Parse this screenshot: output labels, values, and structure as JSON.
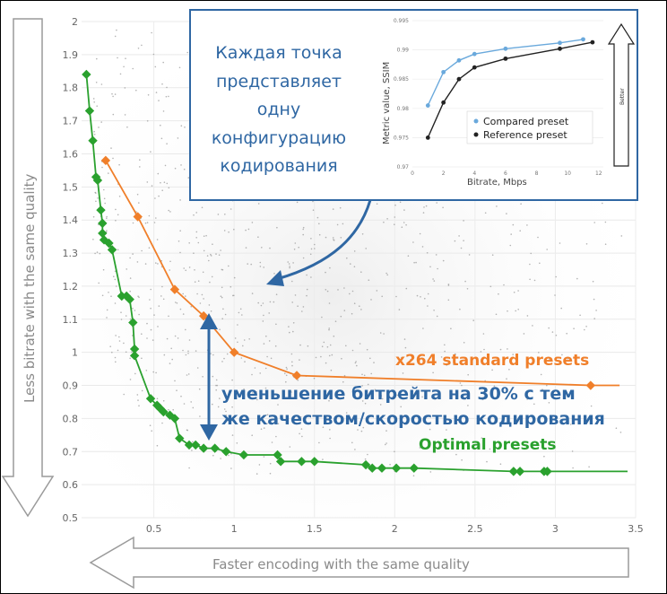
{
  "chart_data": {
    "type": "scatter",
    "x_axis": {
      "label": "Faster encoding with the same quality",
      "ticks": [
        "0.5",
        "1",
        "1.5",
        "2",
        "2.5",
        "3",
        "3.5"
      ],
      "tick_values": [
        0.5,
        1,
        1.5,
        2,
        2.5,
        3,
        3.5
      ],
      "range": [
        0.05,
        3.5
      ]
    },
    "y_axis": {
      "label": "Less bitrate with the same quality",
      "ticks": [
        "0.5",
        "0.6",
        "0.7",
        "0.8",
        "0.9",
        "1",
        "1.1",
        "1.2",
        "1.3",
        "1.4",
        "1.5",
        "1.6",
        "1.7",
        "1.8",
        "1.9",
        "2"
      ],
      "tick_values": [
        0.5,
        0.6,
        0.7,
        0.8,
        0.9,
        1.0,
        1.1,
        1.2,
        1.3,
        1.4,
        1.5,
        1.6,
        1.7,
        1.8,
        1.9,
        2.0
      ],
      "range": [
        0.5,
        2.0
      ]
    },
    "series": [
      {
        "name": "x264 standard presets",
        "color": "#f07f2a",
        "marker": "diamond",
        "points": [
          [
            0.2,
            1.58
          ],
          [
            0.4,
            1.41
          ],
          [
            0.63,
            1.19
          ],
          [
            0.81,
            1.11
          ],
          [
            1.0,
            1.0
          ],
          [
            1.39,
            0.93
          ],
          [
            3.22,
            0.9
          ]
        ]
      },
      {
        "name": "Optimal presets",
        "color": "#2aa12e",
        "marker": "diamond",
        "points": [
          [
            0.08,
            1.84
          ],
          [
            0.1,
            1.73
          ],
          [
            0.12,
            1.64
          ],
          [
            0.14,
            1.53
          ],
          [
            0.15,
            1.52
          ],
          [
            0.17,
            1.43
          ],
          [
            0.18,
            1.39
          ],
          [
            0.18,
            1.36
          ],
          [
            0.19,
            1.34
          ],
          [
            0.22,
            1.33
          ],
          [
            0.24,
            1.31
          ],
          [
            0.3,
            1.17
          ],
          [
            0.33,
            1.17
          ],
          [
            0.35,
            1.16
          ],
          [
            0.37,
            1.09
          ],
          [
            0.38,
            1.01
          ],
          [
            0.38,
            0.99
          ],
          [
            0.48,
            0.86
          ],
          [
            0.52,
            0.84
          ],
          [
            0.54,
            0.83
          ],
          [
            0.56,
            0.82
          ],
          [
            0.6,
            0.81
          ],
          [
            0.63,
            0.8
          ],
          [
            0.66,
            0.74
          ],
          [
            0.72,
            0.72
          ],
          [
            0.76,
            0.72
          ],
          [
            0.81,
            0.71
          ],
          [
            0.88,
            0.71
          ],
          [
            0.95,
            0.7
          ],
          [
            1.06,
            0.69
          ],
          [
            1.27,
            0.69
          ],
          [
            1.29,
            0.67
          ],
          [
            1.42,
            0.67
          ],
          [
            1.5,
            0.67
          ],
          [
            1.82,
            0.66
          ],
          [
            1.86,
            0.65
          ],
          [
            1.92,
            0.65
          ],
          [
            2.01,
            0.65
          ],
          [
            2.12,
            0.65
          ],
          [
            2.74,
            0.64
          ],
          [
            2.78,
            0.64
          ],
          [
            2.93,
            0.64
          ],
          [
            2.95,
            0.64
          ]
        ]
      }
    ],
    "annotations": [
      {
        "id": "each_point",
        "lines": [
          "Каждая точка",
          "представляет",
          "одну",
          "конфигурацию",
          "кодирования"
        ]
      },
      {
        "id": "reduction",
        "lines": [
          "уменьшение битрейта на 30% с тем",
          "же качеством/скоростью кодирования"
        ]
      },
      {
        "id": "x264_label",
        "text": "x264 standard presets"
      },
      {
        "id": "optimal_label",
        "text": "Optimal presets"
      }
    ],
    "inset": {
      "type": "line",
      "xlabel": "Bitrate, Mbps",
      "ylabel": "Metric value, SSIM",
      "better_label": "Better",
      "x_ticks": [
        "0",
        "2",
        "4",
        "6",
        "8",
        "10",
        "12"
      ],
      "x_tick_values": [
        0,
        2,
        4,
        6,
        8,
        10,
        12
      ],
      "y_ticks": [
        "0.995",
        "0.99",
        "0.985",
        "0.98",
        "0.975",
        "0.97"
      ],
      "y_tick_values": [
        0.995,
        0.99,
        0.985,
        0.98,
        0.975,
        0.97
      ],
      "xlim": [
        0,
        12.3
      ],
      "ylim": [
        0.97,
        0.995
      ],
      "series": [
        {
          "name": "Compared preset",
          "color": "#6aa9dc",
          "points": [
            [
              1.0,
              0.9805
            ],
            [
              2.0,
              0.9862
            ],
            [
              3.0,
              0.9882
            ],
            [
              4.0,
              0.9893
            ],
            [
              6.0,
              0.9902
            ],
            [
              9.5,
              0.9912
            ],
            [
              11.0,
              0.9918
            ]
          ]
        },
        {
          "name": "Reference preset",
          "color": "#222222",
          "points": [
            [
              1.0,
              0.975
            ],
            [
              2.0,
              0.981
            ],
            [
              3.0,
              0.985
            ],
            [
              4.0,
              0.987
            ],
            [
              6.0,
              0.9885
            ],
            [
              9.5,
              0.9902
            ],
            [
              11.6,
              0.9913
            ]
          ]
        }
      ]
    }
  }
}
